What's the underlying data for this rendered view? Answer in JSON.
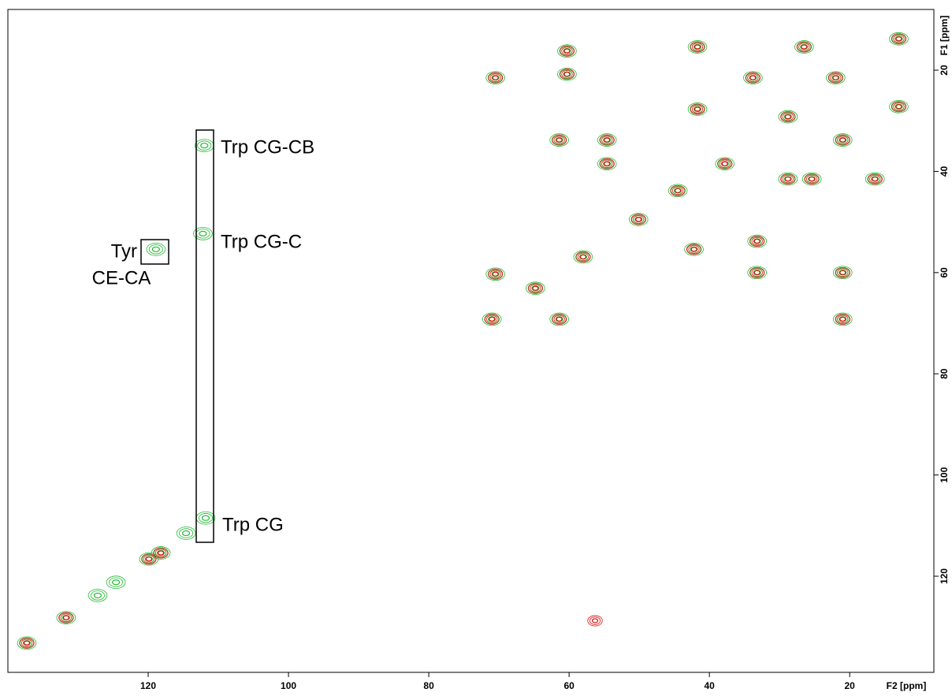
{
  "chart_data": {
    "type": "scatter",
    "xlabel": "F2 [ppm]",
    "ylabel": "F1 [ppm]",
    "xlim": [
      140,
      8
    ],
    "ylim": [
      8,
      139
    ],
    "xticks": [
      120,
      100,
      80,
      60,
      40,
      20
    ],
    "yticks": [
      20,
      40,
      60,
      80,
      100,
      120
    ],
    "annotations": [
      "Tyr",
      "CE-CA",
      "Trp CG-CB",
      "Trp CG-C",
      "Trp CG"
    ],
    "series": [
      {
        "color": "#22bb33",
        "x": [
          137.3,
          131.7,
          127.2,
          124.6,
          119.9,
          118.2,
          114.6,
          71,
          64.8,
          58.0,
          50.1,
          44.5,
          37.8,
          28.8,
          22,
          13,
          112,
          112.2,
          111.8,
          118.9,
          70.5,
          60.3,
          60.3,
          54.6,
          54.6,
          61.4,
          70.5,
          61.4,
          21,
          21,
          21,
          13.0,
          41.7,
          41.7,
          33.8,
          33.2,
          33.2,
          42.2,
          26.5,
          28.8,
          25.4,
          16.4
        ],
        "y": [
          133.2,
          128.2,
          123.8,
          121.2,
          116.6,
          115.4,
          111.5,
          69.2,
          63.1,
          56.9,
          49.5,
          43.8,
          38.5,
          29.2,
          21.5,
          13.8,
          34.9,
          52.3,
          108.5,
          55.4,
          21.5,
          20.8,
          16.2,
          33.8,
          38.5,
          33.8,
          60.3,
          69.2,
          60,
          69.2,
          33.8,
          27.2,
          15.4,
          27.7,
          21.5,
          53.8,
          60,
          55.4,
          15.4,
          41.5,
          41.5,
          41.5
        ]
      },
      {
        "color": "#dd1111",
        "x": [
          137.3,
          131.7,
          119.9,
          118.2,
          71,
          64.8,
          58.0,
          50.1,
          44.5,
          37.8,
          28.8,
          22,
          13,
          70.5,
          60.3,
          60.3,
          54.6,
          54.6,
          61.4,
          70.5,
          61.4,
          21,
          21,
          21,
          13.0,
          41.7,
          41.7,
          33.8,
          33.2,
          33.2,
          42.2,
          26.5,
          28.8,
          25.4,
          16.4,
          56.3
        ],
        "y": [
          133.2,
          128.2,
          116.6,
          115.4,
          69.2,
          63.1,
          56.9,
          49.5,
          43.8,
          38.5,
          29.2,
          21.5,
          13.8,
          21.5,
          20.8,
          16.2,
          33.8,
          38.5,
          33.8,
          60.3,
          69.2,
          60,
          69.2,
          33.8,
          27.2,
          15.4,
          27.7,
          21.5,
          53.8,
          60,
          55.4,
          15.4,
          41.5,
          41.5,
          41.5,
          128.8
        ]
      }
    ]
  }
}
